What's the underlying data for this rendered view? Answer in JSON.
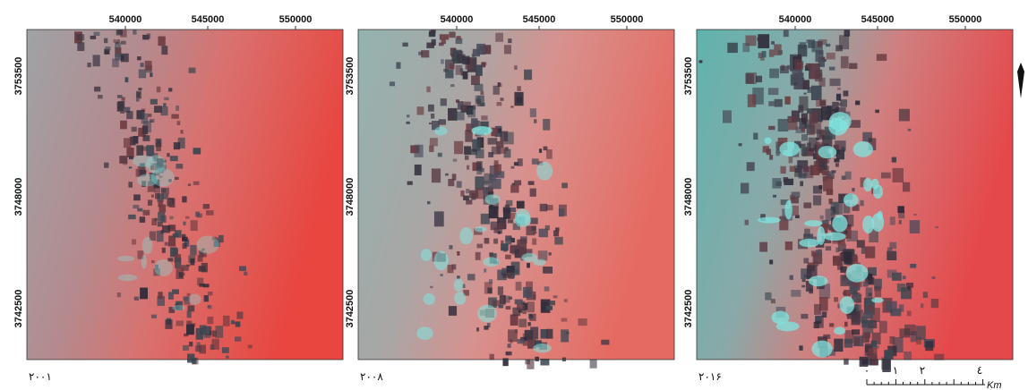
{
  "panels": [
    {
      "x_ticks": [
        540000,
        545000,
        550000
      ],
      "y_ticks": [
        3753500,
        3748000,
        3742500
      ],
      "year": "۲۰۰۱"
    },
    {
      "x_ticks": [
        540000,
        545000,
        550000
      ],
      "y_ticks": [
        3753500,
        3748000,
        3742500
      ],
      "year": "۲۰۰۸"
    },
    {
      "x_ticks": [
        540000,
        545000,
        550000
      ],
      "y_ticks": [
        3753500,
        3748000,
        3742500
      ],
      "year": "۲۰۱۶"
    }
  ],
  "scale_bar": {
    "labels": [
      "۰",
      "۱",
      "۲",
      "٤"
    ],
    "unit": "Km"
  }
}
